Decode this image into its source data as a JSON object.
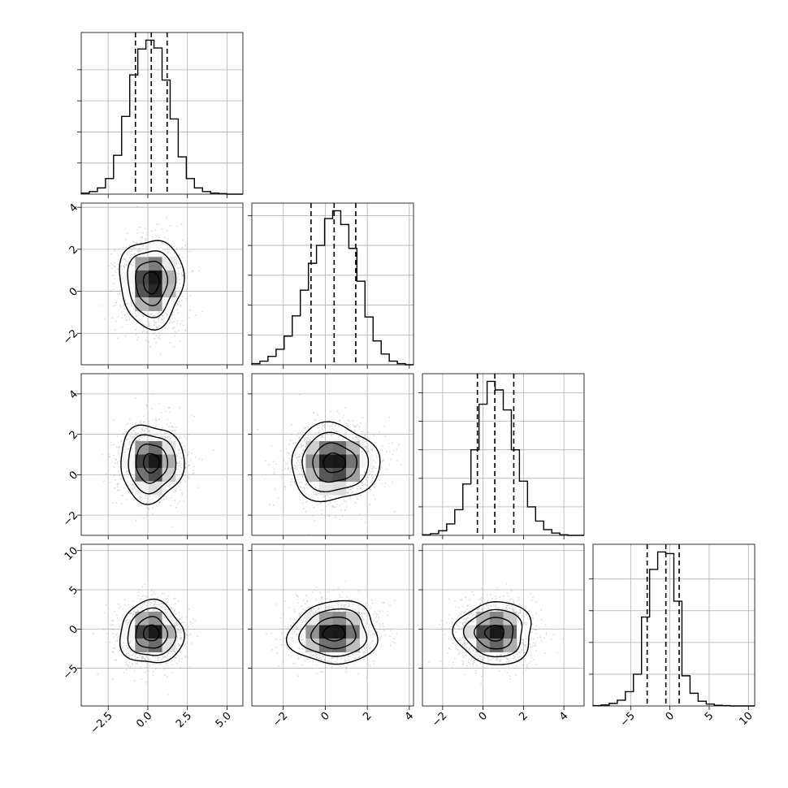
{
  "chart_data": {
    "type": "corner",
    "title": "",
    "n_dim": 4,
    "bounds": [
      [
        -4.2,
        6.0
      ],
      [
        -3.5,
        4.2
      ],
      [
        -3.0,
        5.0
      ],
      [
        -9.8,
        10.8
      ]
    ],
    "quantiles": {
      "q16": [
        -0.78,
        -0.68,
        -0.28,
        -2.9
      ],
      "q50": [
        0.22,
        0.42,
        0.58,
        -0.52
      ],
      "q84": [
        1.22,
        1.45,
        1.52,
        1.18
      ]
    },
    "ticks": [
      [
        -2.5,
        0.0,
        2.5,
        5.0
      ],
      [
        -2,
        0,
        2,
        4
      ],
      [
        -2,
        0,
        2,
        4
      ],
      [
        -5,
        0,
        5,
        10
      ]
    ],
    "tick_labels": {
      "x": [
        [
          "−2.5",
          "0.0",
          "2.5",
          "5.0"
        ],
        [
          "−2",
          "0",
          "2",
          "4"
        ],
        [
          "−2",
          "0",
          "2",
          "4"
        ],
        [
          "−5",
          "0",
          "5",
          "10"
        ]
      ],
      "y": [
        [],
        [
          "−2",
          "0",
          "2",
          "4"
        ],
        [
          "−2",
          "0",
          "2",
          "4"
        ],
        [
          "−5",
          "0",
          "5",
          "10"
        ]
      ]
    },
    "histograms": [
      {
        "dim": 0,
        "bin_edges": [
          -4.2,
          -3.69,
          -3.18,
          -2.67,
          -2.16,
          -1.65,
          -1.14,
          -0.63,
          -0.12,
          0.39,
          0.9,
          1.41,
          1.92,
          2.43,
          2.94,
          3.45,
          3.96,
          4.47,
          4.98,
          5.49,
          6.0
        ],
        "counts": [
          2,
          5,
          12,
          30,
          75,
          150,
          230,
          280,
          297,
          282,
          220,
          145,
          72,
          30,
          12,
          5,
          2,
          1,
          0,
          0
        ],
        "y_ticks": [
          60,
          120,
          180,
          240
        ]
      },
      {
        "dim": 1,
        "bin_edges": [
          -3.5,
          -3.115,
          -2.73,
          -2.345,
          -1.96,
          -1.575,
          -1.19,
          -0.805,
          -0.42,
          -0.035,
          0.35,
          0.735,
          1.12,
          1.505,
          1.89,
          2.275,
          2.66,
          3.045,
          3.43,
          3.815,
          4.2
        ],
        "counts": [
          2,
          6,
          14,
          26,
          48,
          82,
          125,
          170,
          200,
          245,
          258,
          235,
          195,
          140,
          80,
          40,
          18,
          6,
          2,
          0
        ],
        "y_ticks": [
          50,
          100,
          150,
          200,
          250
        ]
      },
      {
        "dim": 2,
        "bin_edges": [
          -3.0,
          -2.6,
          -2.2,
          -1.8,
          -1.4,
          -1.0,
          -0.6,
          -0.2,
          0.2,
          0.6,
          1.0,
          1.4,
          1.8,
          2.2,
          2.6,
          3.0,
          3.4,
          3.8,
          4.2,
          4.6,
          5.0
        ],
        "counts": [
          1,
          3,
          8,
          20,
          45,
          90,
          150,
          230,
          270,
          255,
          220,
          150,
          95,
          50,
          25,
          10,
          4,
          1,
          0,
          0
        ],
        "y_ticks": [
          50,
          100,
          150,
          200,
          250
        ]
      },
      {
        "dim": 3,
        "bin_edges": [
          -9.8,
          -8.77,
          -7.74,
          -6.71,
          -5.68,
          -4.65,
          -3.62,
          -2.59,
          -1.56,
          -0.53,
          0.5,
          1.53,
          2.56,
          3.59,
          4.62,
          5.65,
          6.68,
          7.71,
          8.74,
          9.77,
          10.8
        ],
        "counts": [
          1,
          3,
          8,
          18,
          45,
          100,
          280,
          430,
          485,
          480,
          330,
          95,
          40,
          15,
          6,
          2,
          1,
          0,
          0,
          0
        ],
        "y_ticks": [
          100,
          200,
          300,
          400
        ]
      }
    ],
    "pairs": [
      {
        "x_dim": 0,
        "y_dim": 1,
        "mean": [
          0.22,
          0.42
        ],
        "sigma": [
          1.0,
          1.05
        ],
        "rho": 0.0
      },
      {
        "x_dim": 0,
        "y_dim": 2,
        "mean": [
          0.22,
          0.58
        ],
        "sigma": [
          1.0,
          0.95
        ],
        "rho": 0.0
      },
      {
        "x_dim": 1,
        "y_dim": 2,
        "mean": [
          0.42,
          0.58
        ],
        "sigma": [
          1.05,
          0.95
        ],
        "rho": 0.0
      },
      {
        "x_dim": 0,
        "y_dim": 3,
        "mean": [
          0.22,
          -0.52
        ],
        "sigma": [
          1.0,
          2.0
        ],
        "rho": 0.0
      },
      {
        "x_dim": 1,
        "y_dim": 3,
        "mean": [
          0.42,
          -0.52
        ],
        "sigma": [
          1.05,
          2.0
        ],
        "rho": 0.05
      },
      {
        "x_dim": 2,
        "y_dim": 3,
        "mean": [
          0.58,
          -0.52
        ],
        "sigma": [
          0.95,
          2.0
        ],
        "rho": 0.0
      }
    ],
    "contour_levels_sigma": [
      0.5,
      1.0,
      1.5,
      2.0
    ],
    "grid": true,
    "colors": {
      "line": "#000000",
      "points": "#bdbdbd",
      "grid": "#b0b0b0"
    }
  }
}
